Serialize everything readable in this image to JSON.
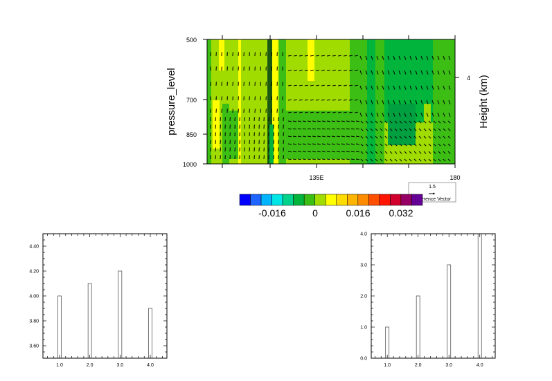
{
  "chart_data": [
    {
      "type": "heatmap",
      "subtype": "pressure-longitude contour with wind vectors",
      "ylabel": "pressure_level",
      "right_ylabel": "Height (km)",
      "yticks": [
        "500",
        "700",
        "850",
        "1000"
      ],
      "right_yticks": [
        "4"
      ],
      "xticks": [
        "135E",
        "180"
      ],
      "colorbar": {
        "labels": [
          "-0.016",
          "0",
          "0.016",
          "0.032"
        ],
        "colors": [
          "#0000ff",
          "#1e64ff",
          "#00b4ff",
          "#00e6e6",
          "#00d28c",
          "#00b43c",
          "#3cbe14",
          "#a0dc00",
          "#ffff00",
          "#ffdc00",
          "#ffb400",
          "#ff8c00",
          "#ff5000",
          "#ff1400",
          "#d2002d",
          "#960064",
          "#640096"
        ]
      },
      "reference_vector": {
        "value": "1.5",
        "label": "Reference Vector"
      }
    },
    {
      "type": "bar",
      "categories": [
        "1.0",
        "2.0",
        "3.0",
        "4.0"
      ],
      "x": [
        1,
        2,
        3,
        4
      ],
      "values": [
        4.0,
        4.1,
        4.2,
        3.9
      ],
      "yticks": [
        "3.60",
        "3.80",
        "4.00",
        "4.20",
        "4.40"
      ],
      "ylim": [
        3.5,
        4.5
      ],
      "xlim": [
        0.45,
        4.55
      ]
    },
    {
      "type": "bar",
      "categories": [
        "1.0",
        "2.0",
        "3.0",
        "4.0"
      ],
      "x": [
        1,
        2,
        3,
        4
      ],
      "values": [
        1.0,
        2.0,
        3.0,
        4.0
      ],
      "yticks": [
        "0.0",
        "1.0",
        "2.0",
        "3.0",
        "4.0"
      ],
      "ylim": [
        0,
        4
      ],
      "xlim": [
        0.48,
        4.5
      ]
    }
  ]
}
